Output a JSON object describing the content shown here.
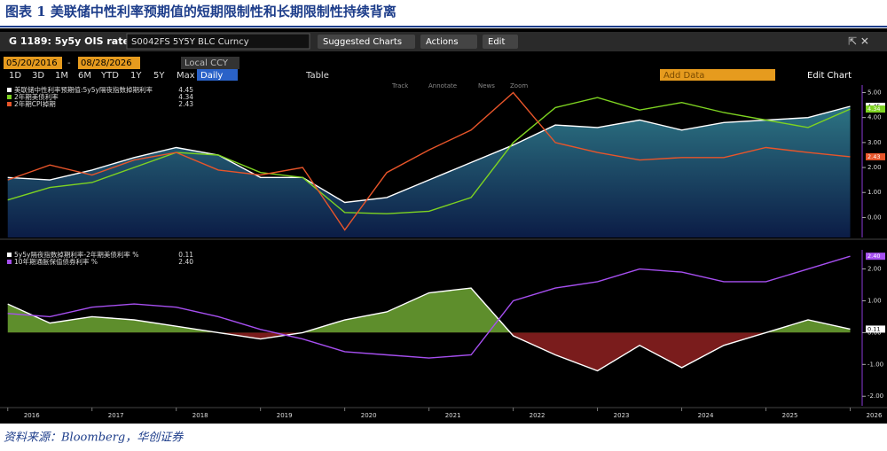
{
  "header": {
    "title": "图表 1 美联储中性利率预期值的短期限制性和长期限制性持续背离",
    "source": "资料来源：Bloomberg，华创证券"
  },
  "toolbar": {
    "ticker": "G 1189: 5y5y OIS rate",
    "security": "S0042FS 5Y5Y BLC Curncy",
    "menus": [
      "Suggested Charts",
      "Actions",
      "Edit"
    ],
    "start_date": "05/20/2016",
    "date_sep": "-",
    "end_date": "08/28/2026",
    "currency": "Local CCY",
    "ranges": [
      "1D",
      "3D",
      "1M",
      "6M",
      "YTD",
      "1Y",
      "5Y",
      "Max"
    ],
    "frequency": "Daily",
    "table": "Table",
    "add_data": "Add Data",
    "edit_chart": "Edit Chart",
    "tools": [
      "Track",
      "Annotate",
      "News",
      "Zoom"
    ]
  },
  "chart_data": [
    {
      "type": "line",
      "x": [
        2016.4,
        2016.9,
        2017.4,
        2017.9,
        2018.4,
        2018.9,
        2019.4,
        2019.9,
        2020.4,
        2020.9,
        2021.4,
        2021.9,
        2022.4,
        2022.9,
        2023.4,
        2023.9,
        2024.4,
        2024.9,
        2025.4,
        2025.9,
        2026.4
      ],
      "xlim": [
        2016.35,
        2026.5
      ],
      "ylim": [
        -0.8,
        5.3
      ],
      "yticks": [
        {
          "value": 0,
          "label": "0.00"
        },
        {
          "value": 1,
          "label": "1.00"
        },
        {
          "value": 2,
          "label": "2.00"
        },
        {
          "value": 3,
          "label": "3.00"
        },
        {
          "value": 4,
          "label": "4.00"
        },
        {
          "value": 5,
          "label": "5.00"
        }
      ],
      "series": [
        {
          "name": "美联储中性利率预期值:5y5y隔夜指数掉期利率",
          "color": "#ffffff",
          "fill": "gradient",
          "legend_value": "4.45",
          "values": [
            1.6,
            1.5,
            1.9,
            2.4,
            2.8,
            2.5,
            1.6,
            1.6,
            0.6,
            0.8,
            1.5,
            2.2,
            2.9,
            3.7,
            3.6,
            3.9,
            3.5,
            3.8,
            3.9,
            4.0,
            4.45
          ]
        },
        {
          "name": "2年期美债利率",
          "color": "#7ed321",
          "legend_value": "4.34",
          "values": [
            0.7,
            1.2,
            1.4,
            2.0,
            2.6,
            2.5,
            1.8,
            1.6,
            0.2,
            0.15,
            0.25,
            0.8,
            3.0,
            4.4,
            4.8,
            4.3,
            4.6,
            4.2,
            3.9,
            3.6,
            4.34
          ]
        },
        {
          "name": "2年期CPI掉期",
          "color": "#e8552a",
          "legend_value": "2.43",
          "values": [
            1.5,
            2.1,
            1.7,
            2.3,
            2.6,
            1.9,
            1.7,
            2.0,
            -0.5,
            1.8,
            2.7,
            3.5,
            5.0,
            3.0,
            2.6,
            2.3,
            2.4,
            2.4,
            2.8,
            2.6,
            2.43
          ]
        }
      ]
    },
    {
      "type": "line",
      "x": [
        2016.4,
        2016.9,
        2017.4,
        2017.9,
        2018.4,
        2018.9,
        2019.4,
        2019.9,
        2020.4,
        2020.9,
        2021.4,
        2021.9,
        2022.4,
        2022.9,
        2023.4,
        2023.9,
        2024.4,
        2024.9,
        2025.4,
        2025.9,
        2026.4
      ],
      "xlim": [
        2016.35,
        2026.5
      ],
      "xticks": [
        {
          "value": 2016.4,
          "label": "2016"
        },
        {
          "value": 2017.4,
          "label": "2017"
        },
        {
          "value": 2018.4,
          "label": "2018"
        },
        {
          "value": 2019.4,
          "label": "2019"
        },
        {
          "value": 2020.4,
          "label": "2020"
        },
        {
          "value": 2021.4,
          "label": "2021"
        },
        {
          "value": 2022.4,
          "label": "2022"
        },
        {
          "value": 2023.4,
          "label": "2023"
        },
        {
          "value": 2024.4,
          "label": "2024"
        },
        {
          "value": 2025.4,
          "label": "2025"
        },
        {
          "value": 2026.4,
          "label": "2026"
        }
      ],
      "ylim": [
        -2.3,
        2.6
      ],
      "yticks": [
        {
          "value": -2,
          "label": "-2.00"
        },
        {
          "value": -1,
          "label": "-1.00"
        },
        {
          "value": 0,
          "label": "0.00"
        },
        {
          "value": 1,
          "label": "1.00"
        },
        {
          "value": 2,
          "label": "2.00"
        }
      ],
      "series": [
        {
          "name": "5y5y隔夜指数掉期利率-2年期美债利率 %",
          "color": "#ffffff",
          "fill": "sign",
          "fill_colors": [
            "#5e8e2c",
            "#7a1c1c"
          ],
          "legend_value": "0.11",
          "values": [
            0.9,
            0.3,
            0.5,
            0.4,
            0.2,
            0.0,
            -0.2,
            0.0,
            0.4,
            0.65,
            1.25,
            1.4,
            -0.1,
            -0.7,
            -1.2,
            -0.4,
            -1.1,
            -0.4,
            0.0,
            0.4,
            0.11
          ]
        },
        {
          "name": "10年期通胀保值债券利率 %",
          "color": "#a64ff0",
          "legend_value": "2.40",
          "values": [
            0.6,
            0.5,
            0.8,
            0.9,
            0.8,
            0.5,
            0.1,
            -0.2,
            -0.6,
            -0.7,
            -0.8,
            -0.7,
            1.0,
            1.4,
            1.6,
            2.0,
            1.9,
            1.6,
            1.6,
            2.0,
            2.4
          ]
        }
      ]
    }
  ]
}
